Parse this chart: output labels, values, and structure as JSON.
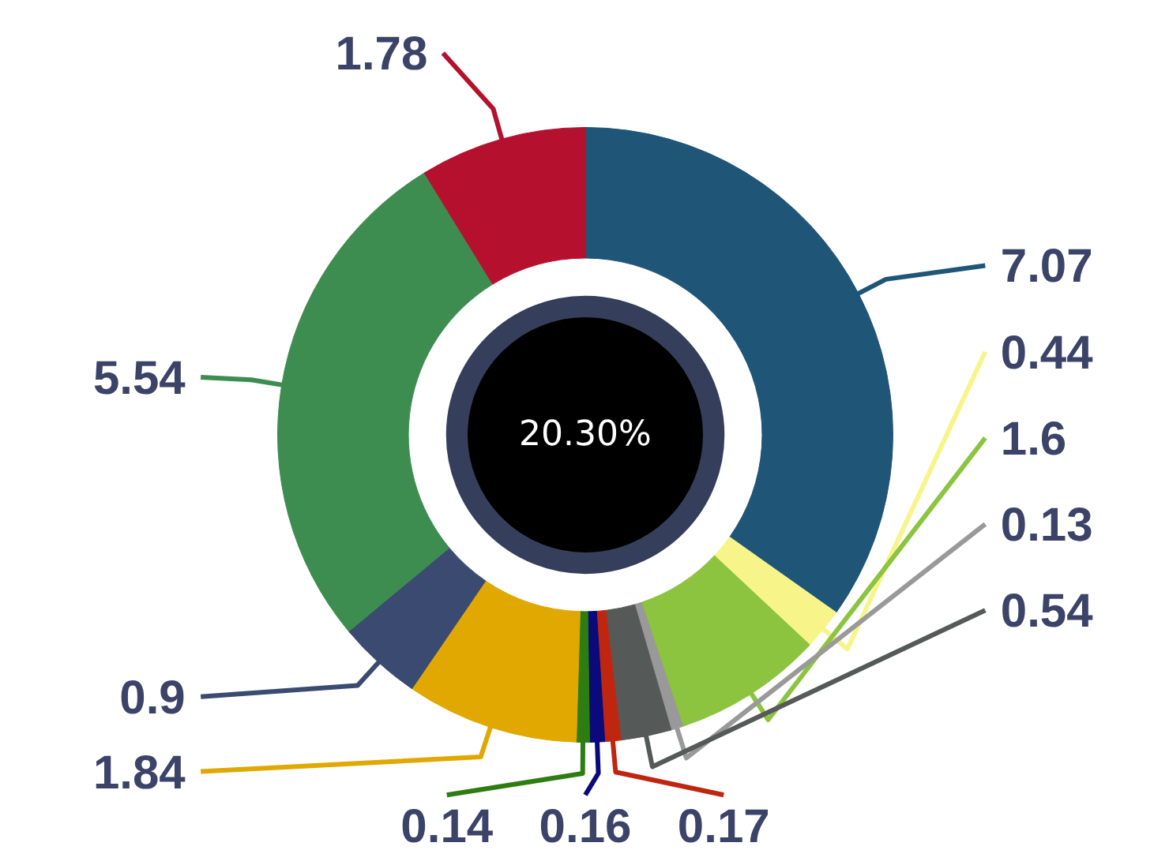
{
  "chart_data": {
    "type": "donut",
    "categories": [
      null,
      null,
      null,
      null,
      null,
      null,
      null,
      null,
      null,
      null,
      null,
      null
    ],
    "values": [
      7.07,
      0.44,
      1.6,
      0.13,
      0.54,
      0.17,
      0.16,
      0.14,
      1.84,
      0.9,
      5.54,
      1.78
    ],
    "colors": [
      "#1f5577",
      "#f7f58a",
      "#8cc43f",
      "#999999",
      "#555a58",
      "#c0250f",
      "#0a0a7a",
      "#2e7d12",
      "#e0a800",
      "#3b4a70",
      "#3d8c50",
      "#b5112e"
    ],
    "data_labels": true,
    "annotations": [
      "20.30%"
    ]
  }
}
